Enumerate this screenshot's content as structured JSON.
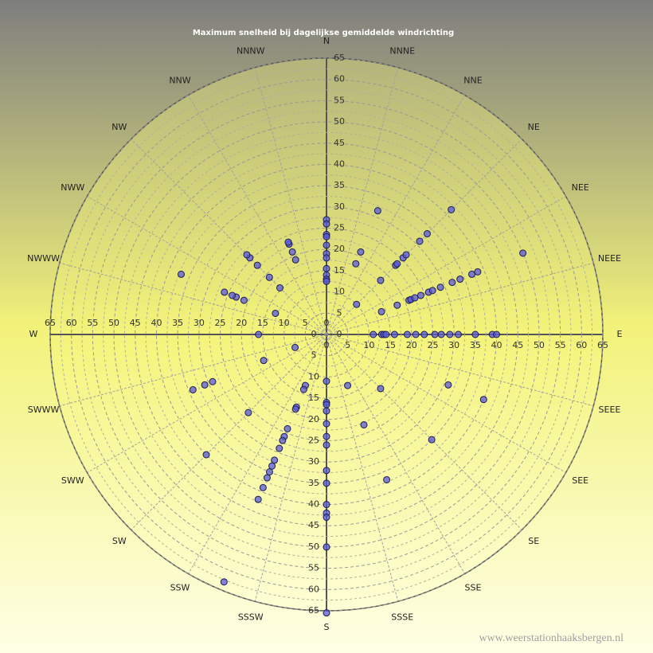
{
  "chart_data": {
    "type": "polar_scatter",
    "title": "Maximum  snelheid  bij  dagelijkse  gemiddelde  windrichting",
    "directions": [
      "N",
      "NNNE",
      "NNE",
      "NE",
      "NEE",
      "NEEE",
      "E",
      "SEEE",
      "SEE",
      "SE",
      "SSE",
      "SSSE",
      "S",
      "SSSW",
      "SSW",
      "SW",
      "SWW",
      "SWWW",
      "W",
      "NWWW",
      "NWW",
      "NW",
      "NNW",
      "NNNW"
    ],
    "rlim": [
      0,
      65
    ],
    "rticks": [
      0,
      5,
      10,
      15,
      20,
      25,
      30,
      35,
      40,
      45,
      50,
      55,
      60,
      65
    ],
    "grid": true,
    "color": "#5a5ad8",
    "theta": [
      0,
      0,
      0,
      0,
      0,
      0,
      0,
      0,
      0,
      0,
      0,
      22.5,
      22.5,
      22.5,
      45,
      45,
      45,
      45,
      45,
      45,
      45,
      45,
      45,
      67.5,
      67.5,
      67.5,
      67.5,
      67.5,
      67.5,
      67.5,
      67.5,
      67.5,
      67.5,
      67.5,
      67.5,
      67.5,
      67.5,
      90,
      90,
      90,
      90,
      90,
      90,
      90,
      90,
      90,
      90,
      90,
      90,
      90,
      90,
      90,
      112.5,
      112.5,
      135,
      135,
      157.5,
      157.5,
      157.5,
      180,
      180,
      180,
      180,
      180,
      180,
      180,
      180,
      180,
      180,
      180,
      180,
      180,
      180,
      202.5,
      202.5,
      202.5,
      202.5,
      202.5,
      202.5,
      202.5,
      202.5,
      202.5,
      202.5,
      202.5,
      202.5,
      202.5,
      202.5,
      202.5,
      225,
      225,
      247.5,
      247.5,
      247.5,
      247.5,
      247.5,
      270,
      292.5,
      292.5,
      292.5,
      292.5,
      292.5,
      292.5,
      315,
      315,
      315,
      315,
      315,
      337.5,
      337.5,
      337.5,
      337.5
    ],
    "values": [
      27,
      26,
      23.5,
      23,
      21,
      19,
      18,
      15.5,
      14,
      13,
      12.5,
      18,
      21,
      31.5,
      10,
      18,
      23,
      23.5,
      25.5,
      26.5,
      31,
      33.5,
      41.5,
      14,
      18,
      21,
      21.5,
      22.5,
      24,
      26,
      27,
      29,
      32,
      34,
      37,
      38.5,
      50,
      11,
      13,
      13.5,
      14,
      16,
      19,
      21,
      23,
      25.5,
      27,
      29,
      31,
      35,
      39,
      40,
      31,
      40,
      18,
      35,
      13,
      23,
      37,
      11,
      16,
      16.5,
      18,
      21,
      24,
      26,
      32,
      35,
      40,
      42,
      43,
      50,
      65.5,
      13,
      14,
      18.5,
      19,
      24,
      26,
      27,
      29,
      32,
      33.5,
      35,
      36.5,
      39,
      42,
      63,
      26,
      40,
      8,
      16,
      29,
      31,
      34,
      16,
      13,
      21,
      23,
      24,
      26,
      37,
      15.5,
      19,
      23,
      25.5,
      26.5,
      19,
      21,
      23,
      23.5
    ]
  },
  "watermark": "www.weerstationhaaksbergen.nl"
}
